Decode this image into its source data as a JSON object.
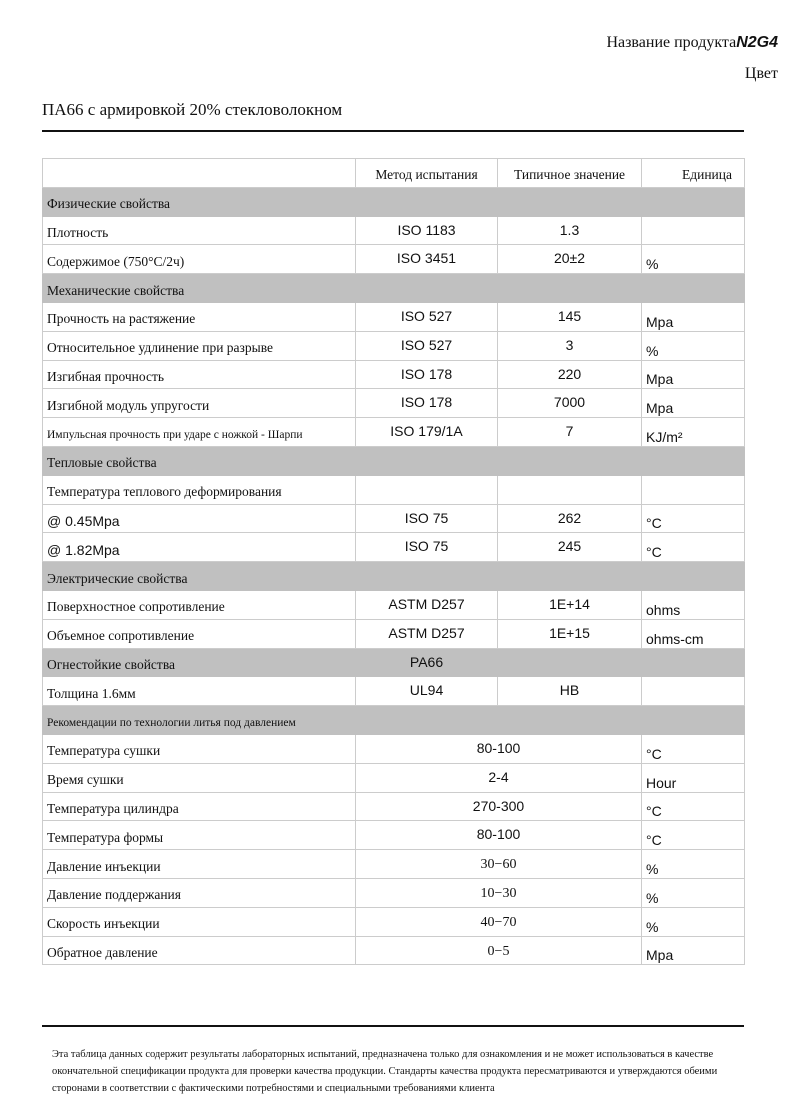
{
  "header": {
    "product_name_label": "Название продукта",
    "product_name": "N2G4",
    "color_label": "Цвет",
    "subtitle": "ПА66 с армировкой 20% стекловолокном"
  },
  "table": {
    "columns": [
      "",
      "Метод испытания",
      "Типичное значение",
      "Единица"
    ],
    "rows": [
      {
        "type": "section",
        "label": "Физические свойства"
      },
      {
        "type": "row",
        "label": "Плотность",
        "method": "ISO 1183",
        "value": "1.3",
        "unit": ""
      },
      {
        "type": "row",
        "label": "Содержимое (750°C/2ч)",
        "method": "ISO 3451",
        "value": "20±2",
        "unit": "%"
      },
      {
        "type": "section",
        "label": "Механические свойства"
      },
      {
        "type": "row",
        "label": "Прочность на растяжение",
        "method": "ISO 527",
        "value": "145",
        "unit": "Mpa"
      },
      {
        "type": "row",
        "label": "Относительное удлинение при разрыве",
        "method": "ISO 527",
        "value": "3",
        "unit": "%"
      },
      {
        "type": "row",
        "label": "Изгибная прочность",
        "method": "ISO 178",
        "value": "220",
        "unit": "Mpa"
      },
      {
        "type": "row",
        "label": "Изгибной модуль упругости",
        "method": "ISO 178",
        "value": "7000",
        "unit": "Mpa"
      },
      {
        "type": "row",
        "label": "Импульсная прочность при ударе с ножкой - Шарпи",
        "method": "ISO 179/1A",
        "value": "7",
        "unit": "KJ/m²",
        "small": true
      },
      {
        "type": "section",
        "label": "Тепловые свойства"
      },
      {
        "type": "row",
        "label": "Температура теплового деформирования",
        "method": "",
        "value": "",
        "unit": ""
      },
      {
        "type": "row",
        "label": "@ 0.45Mpa",
        "method": "ISO 75",
        "value": "262",
        "unit": "°C",
        "sans": true
      },
      {
        "type": "row",
        "label": "@ 1.82Mpa",
        "method": "ISO 75",
        "value": "245",
        "unit": "°C",
        "sans": true
      },
      {
        "type": "section",
        "label": "Электрические свойства"
      },
      {
        "type": "row",
        "label": "Поверхностное сопротивление",
        "method": "ASTM D257",
        "value": "1E+14",
        "unit": "ohms"
      },
      {
        "type": "row",
        "label": "Объемное сопротивление",
        "method": "ASTM D257",
        "value": "1E+15",
        "unit": "ohms-cm"
      },
      {
        "type": "section",
        "label": "Огнестойкие свойства",
        "method": "PA66"
      },
      {
        "type": "row",
        "label": "Толщина 1.6мм",
        "method": "UL94",
        "value": "HB",
        "unit": ""
      },
      {
        "type": "section",
        "label": "Рекомендации по технологии литья под давлением",
        "small": true
      },
      {
        "type": "merged",
        "label": "Температура сушки",
        "value": "80-100",
        "unit": "°C"
      },
      {
        "type": "merged",
        "label": "Время сушки",
        "value": "2-4",
        "unit": "Hour"
      },
      {
        "type": "merged",
        "label": "Температура цилиндра",
        "value": "270-300",
        "unit": "°C"
      },
      {
        "type": "merged",
        "label": "Температура формы",
        "value": "80-100",
        "unit": "°C"
      },
      {
        "type": "merged",
        "label": "Давление инъекции",
        "value": "30−60",
        "unit": "%",
        "serif": true
      },
      {
        "type": "merged",
        "label": "Давление поддержания",
        "value": "10−30",
        "unit": "%",
        "serif": true
      },
      {
        "type": "merged",
        "label": "Скорость инъекции",
        "value": "40−70",
        "unit": "%",
        "serif": true
      },
      {
        "type": "merged",
        "label": "Обратное давление",
        "value": "0−5",
        "unit": "Mpa",
        "serif": true
      }
    ]
  },
  "footer": {
    "disclaimer": "Эта таблица данных содержит результаты лабораторных испытаний, предназначена только для ознакомления и не может использоваться в качестве окончательной спецификации продукта для проверки качества продукции. Стандарты качества продукта пересматриваются и утверждаются обеими сторонами в соответствии с фактическими потребностями и специальными требованиями клиента"
  }
}
